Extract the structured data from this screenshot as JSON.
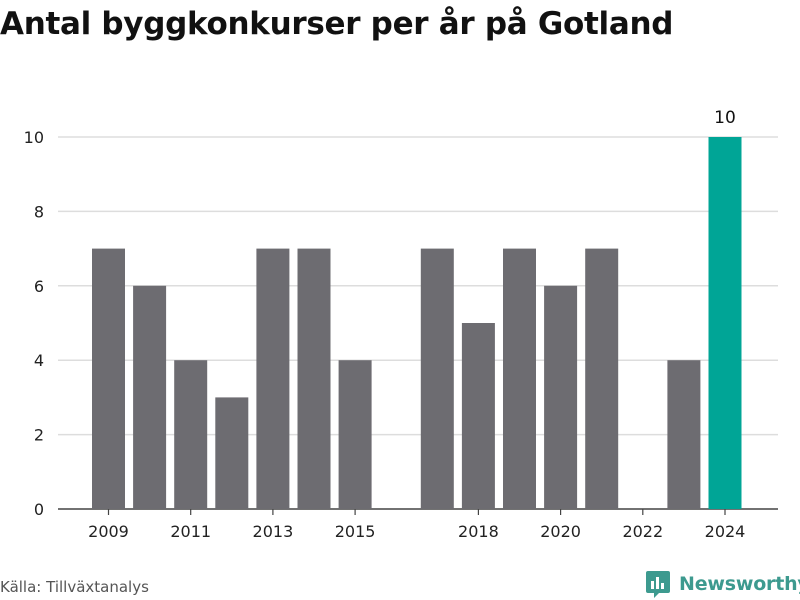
{
  "header": {
    "title": "Antal byggkonkurser per år på Gotland"
  },
  "footer": {
    "source": "Källa: Tillväxtanalys",
    "brand": "Newsworthy"
  },
  "colors": {
    "bar": "#6d6c71",
    "highlight": "#00a596",
    "grid": "#dddddd",
    "axis": "#444444",
    "brand": "#3d9a8f"
  },
  "icons": {
    "brand_logo": "bar-chart-speech-bubble-icon"
  },
  "chart_data": {
    "type": "bar",
    "title": "Antal byggkonkurser per år på Gotland",
    "xlabel": "",
    "ylabel": "",
    "categories": [
      "2009",
      "2010",
      "2011",
      "2012",
      "2013",
      "2014",
      "2015",
      "2016",
      "2017",
      "2018",
      "2019",
      "2020",
      "2021",
      "2022",
      "2023",
      "2024"
    ],
    "values": [
      7,
      6,
      4,
      3,
      7,
      7,
      4,
      0,
      7,
      5,
      7,
      6,
      7,
      0,
      4,
      10
    ],
    "highlight_category": "2024",
    "data_labels": [
      {
        "category": "2024",
        "text": "10"
      }
    ],
    "x_tick_labels": [
      "2009",
      "2011",
      "2013",
      "2015",
      "2018",
      "2020",
      "2022",
      "2024"
    ],
    "y_ticks": [
      0,
      2,
      4,
      6,
      8,
      10
    ],
    "ylim": [
      0,
      10
    ],
    "grid": true,
    "legend": "none"
  }
}
